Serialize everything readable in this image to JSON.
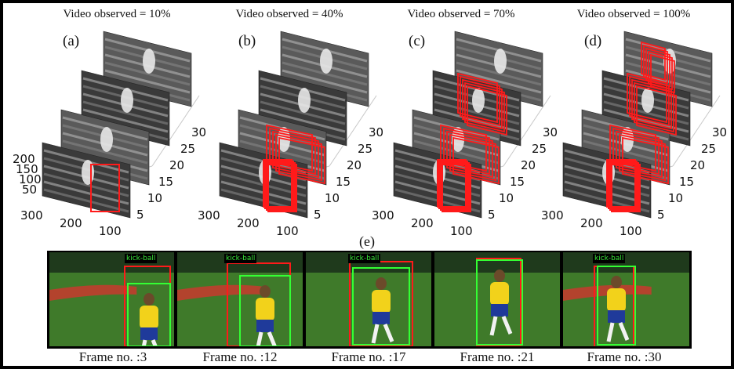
{
  "panels": [
    {
      "letter": "(a)",
      "title": "Video observed = 10%",
      "observed_pct": 10
    },
    {
      "letter": "(b)",
      "title": "Video observed = 40%",
      "observed_pct": 40
    },
    {
      "letter": "(c)",
      "title": "Video observed = 70%",
      "observed_pct": 70
    },
    {
      "letter": "(d)",
      "title": "Video observed = 100%",
      "observed_pct": 100
    }
  ],
  "axis_ticks": {
    "frame_axis": [
      "5",
      "10",
      "15",
      "20",
      "25",
      "30"
    ],
    "x_axis": [
      "300",
      "200",
      "100"
    ],
    "y_axis": [
      "200",
      "150",
      "100",
      "50"
    ]
  },
  "strip": {
    "label": "(e)",
    "action_label": "kick-ball",
    "frames": [
      {
        "caption": "Frame no. :3"
      },
      {
        "caption": "Frame no. :12"
      },
      {
        "caption": "Frame no. :17"
      },
      {
        "caption": "Frame no. :21"
      },
      {
        "caption": "Frame no. :30"
      }
    ]
  },
  "colors": {
    "prediction_box": "#ff1a1a",
    "ground_truth_box": "#33ff33",
    "pitch": "#3f7a2a",
    "jersey": "#f2d21b",
    "shorts": "#1f3a9a"
  }
}
